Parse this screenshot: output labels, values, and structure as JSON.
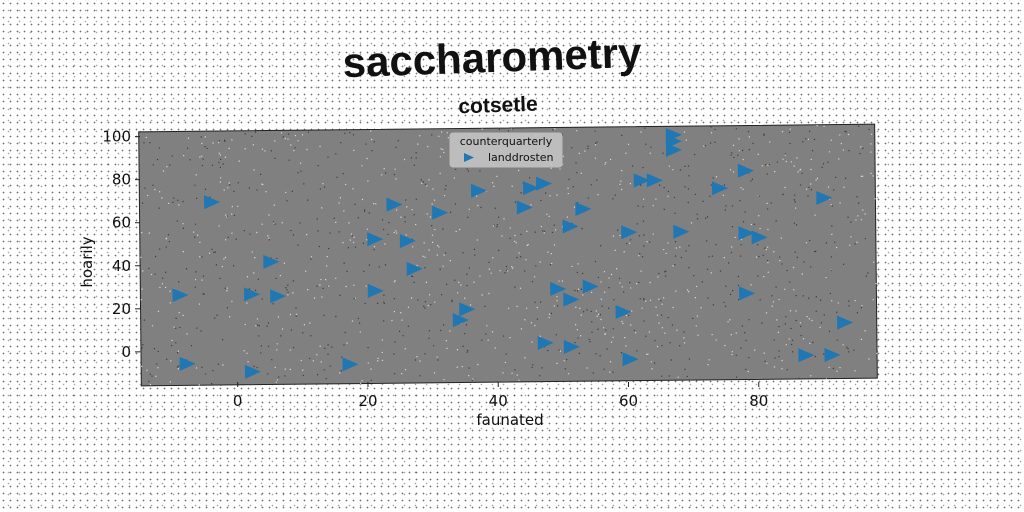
{
  "chart_data": {
    "type": "scatter",
    "title": "saccharometry",
    "subtitle": "cotsetle",
    "xlabel": "faunated",
    "ylabel": "hoarily",
    "xlim": [
      -15,
      98
    ],
    "ylim": [
      -14,
      104
    ],
    "xticks": [
      0,
      20,
      40,
      60,
      80
    ],
    "yticks": [
      0,
      20,
      40,
      60,
      80,
      100
    ],
    "grid": false,
    "legend": {
      "title": "counterquarterly",
      "placement": "top-center"
    },
    "colors": {
      "marker": "#1f77b4",
      "plot_bg": "#808080"
    },
    "series": [
      {
        "name": "landdrosten",
        "marker": "triangle-right",
        "points": [
          {
            "x": -9,
            "y": 28
          },
          {
            "x": -8,
            "y": -4
          },
          {
            "x": -4,
            "y": 71
          },
          {
            "x": 2,
            "y": -8
          },
          {
            "x": 2,
            "y": 28
          },
          {
            "x": 5,
            "y": 43
          },
          {
            "x": 6,
            "y": 27
          },
          {
            "x": 17,
            "y": -5
          },
          {
            "x": 21,
            "y": 29
          },
          {
            "x": 21,
            "y": 53
          },
          {
            "x": 24,
            "y": 69
          },
          {
            "x": 26,
            "y": 52
          },
          {
            "x": 27,
            "y": 39
          },
          {
            "x": 31,
            "y": 65
          },
          {
            "x": 34,
            "y": 15
          },
          {
            "x": 35,
            "y": 20
          },
          {
            "x": 37,
            "y": 75
          },
          {
            "x": 44,
            "y": 67
          },
          {
            "x": 45,
            "y": 76
          },
          {
            "x": 47,
            "y": 78
          },
          {
            "x": 47,
            "y": 4
          },
          {
            "x": 49,
            "y": 29
          },
          {
            "x": 51,
            "y": 58
          },
          {
            "x": 51,
            "y": 24
          },
          {
            "x": 51,
            "y": 2
          },
          {
            "x": 53,
            "y": 66
          },
          {
            "x": 54,
            "y": 30
          },
          {
            "x": 59,
            "y": 18
          },
          {
            "x": 60,
            "y": 55
          },
          {
            "x": 60,
            "y": -4
          },
          {
            "x": 62,
            "y": 79
          },
          {
            "x": 64,
            "y": 79
          },
          {
            "x": 67,
            "y": 100
          },
          {
            "x": 67,
            "y": 97
          },
          {
            "x": 67,
            "y": 93
          },
          {
            "x": 68,
            "y": 55
          },
          {
            "x": 74,
            "y": 75
          },
          {
            "x": 78,
            "y": 83
          },
          {
            "x": 78,
            "y": 54
          },
          {
            "x": 78,
            "y": 26
          },
          {
            "x": 80,
            "y": 52
          },
          {
            "x": 87,
            "y": -3
          },
          {
            "x": 91,
            "y": -3
          },
          {
            "x": 90,
            "y": 70
          },
          {
            "x": 93,
            "y": 12
          }
        ]
      }
    ]
  }
}
